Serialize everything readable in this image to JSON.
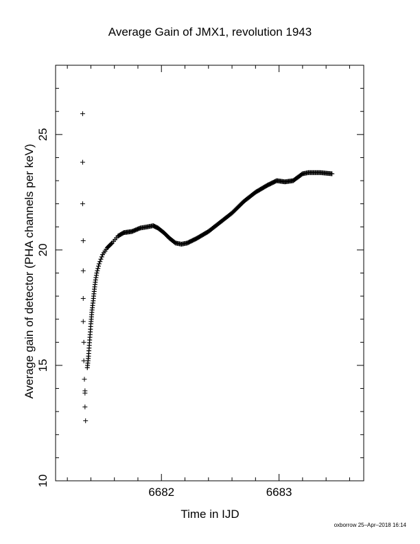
{
  "chart_data": {
    "type": "scatter",
    "title": "Average Gain of JMX1, revolution 1943",
    "xlabel": "Time in IJD",
    "ylabel": "Average gain of detector (PHA channels per keV)",
    "xlim": [
      6681.1,
      6683.72
    ],
    "ylim": [
      10,
      28
    ],
    "xticks": [
      6682,
      6683
    ],
    "yticks": [
      10,
      15,
      20,
      25
    ],
    "marker": "+",
    "grid": false,
    "outliers": {
      "x": [
        6681.33,
        6681.33,
        6681.33,
        6681.335,
        6681.335,
        6681.335,
        6681.335,
        6681.34,
        6681.34,
        6681.345,
        6681.35,
        6681.35,
        6681.35,
        6681.355
      ],
      "y": [
        25.9,
        23.8,
        22.0,
        20.4,
        19.1,
        17.9,
        16.9,
        16.0,
        15.2,
        14.4,
        13.8,
        13.9,
        13.2,
        12.6
      ]
    },
    "series": [
      {
        "x": [
          6681.37,
          6681.38,
          6681.39,
          6681.4,
          6681.41,
          6681.42,
          6681.43,
          6681.44,
          6681.45,
          6681.47,
          6681.5,
          6681.54,
          6681.58,
          6681.63,
          6681.68,
          6681.75,
          6681.82,
          6681.88,
          6681.93,
          6681.97,
          6682.02,
          6682.07,
          6682.12,
          6682.17,
          6682.22,
          6682.3,
          6682.4,
          6682.5,
          6682.6,
          6682.7,
          6682.8,
          6682.9,
          6682.98,
          6683.05,
          6683.12,
          6683.2,
          6683.25,
          6683.35,
          6683.45
        ],
        "y": [
          14.9,
          15.4,
          16.1,
          16.8,
          17.4,
          17.8,
          18.3,
          18.7,
          19.0,
          19.4,
          19.8,
          20.1,
          20.3,
          20.6,
          20.75,
          20.8,
          20.95,
          21.0,
          21.05,
          20.95,
          20.75,
          20.5,
          20.3,
          20.25,
          20.3,
          20.5,
          20.8,
          21.2,
          21.6,
          22.1,
          22.5,
          22.8,
          23.0,
          22.95,
          23.0,
          23.3,
          23.35,
          23.35,
          23.3
        ]
      }
    ]
  },
  "footer": "oxborrow 25–Apr–2018 16:14"
}
